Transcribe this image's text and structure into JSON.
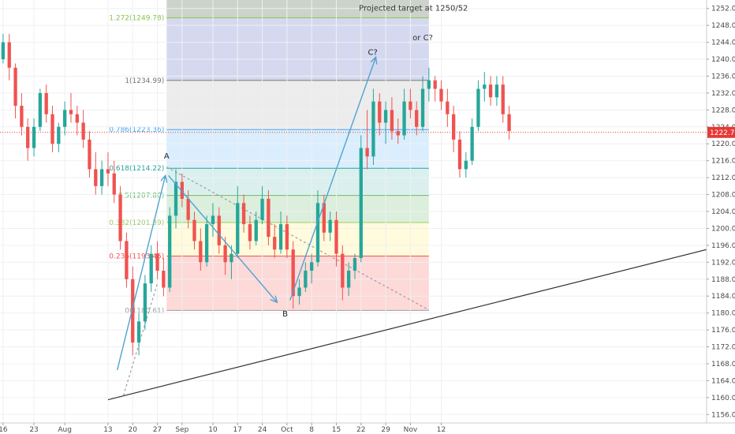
{
  "chart_data": {
    "type": "candlestick",
    "y_axis": {
      "ylim": [
        1154,
        1254
      ],
      "ticks": [
        1156,
        1160,
        1164,
        1168,
        1172,
        1176,
        1180,
        1184,
        1188,
        1192,
        1196,
        1200,
        1204,
        1208,
        1212,
        1216,
        1220,
        1224,
        1228,
        1232,
        1236,
        1240,
        1244,
        1248,
        1252
      ],
      "position": "right"
    },
    "x_axis": {
      "xlim": [
        -0.5,
        114
      ],
      "ticks": [
        {
          "i": 0,
          "label": "16"
        },
        {
          "i": 5,
          "label": "23"
        },
        {
          "i": 10,
          "label": "Aug"
        },
        {
          "i": 17,
          "label": "13"
        },
        {
          "i": 21,
          "label": "20"
        },
        {
          "i": 25,
          "label": "27"
        },
        {
          "i": 29,
          "label": "Sep"
        },
        {
          "i": 34,
          "label": "10"
        },
        {
          "i": 38,
          "label": "17"
        },
        {
          "i": 42,
          "label": "24"
        },
        {
          "i": 46,
          "label": "Oct"
        },
        {
          "i": 50,
          "label": "8"
        },
        {
          "i": 54,
          "label": "15"
        },
        {
          "i": 58,
          "label": "22"
        },
        {
          "i": 62,
          "label": "29"
        },
        {
          "i": 66,
          "label": "Nov"
        },
        {
          "i": 71,
          "label": "12"
        }
      ]
    },
    "last_price": {
      "value": 1222.7,
      "label": "1222.70",
      "color": "#e53935"
    },
    "fib_retracement": {
      "x_start": 26.5,
      "x_end": 69,
      "levels": [
        {
          "ratio": "0",
          "value": 1180.61,
          "label": "0(1180.61)",
          "line": "#9e9e9e",
          "fill": "rgba(244,67,54,0.20)"
        },
        {
          "ratio": "0.236",
          "value": 1193.45,
          "label": "0.236(1193.45)",
          "line": "#ef5350",
          "fill": "rgba(255,235,59,0.18)"
        },
        {
          "ratio": "0.382",
          "value": 1201.39,
          "label": "0.382(1201.39)",
          "line": "#9ccc65",
          "fill": "rgba(76,175,80,0.20)"
        },
        {
          "ratio": "0.5",
          "value": 1207.8,
          "label": "0.5(1207.80)",
          "line": "#66bb6a",
          "fill": "rgba(0,150,136,0.14)"
        },
        {
          "ratio": "0.618",
          "value": 1214.22,
          "label": "0.618(1214.22)",
          "line": "#26a69a",
          "fill": "rgba(33,150,243,0.16)"
        },
        {
          "ratio": "0.786",
          "value": 1223.36,
          "label": "0.786(1223.36)",
          "line": "#42a5f5",
          "fill": "rgba(158,158,158,0.20)"
        },
        {
          "ratio": "1",
          "value": 1234.99,
          "label": "1(1234.99)",
          "line": "#757575",
          "fill": "rgba(63,81,181,0.22)"
        },
        {
          "ratio": "1.272",
          "value": 1249.78,
          "label": "1.272(1249.78)",
          "line": "#8bc34a",
          "fill": "rgba(85,110,80,0.30)"
        }
      ]
    },
    "annotations": [
      {
        "text": "Projected target at 1250/52",
        "x": 66.5,
        "y": 1251.5
      },
      {
        "text": "or C?",
        "x": 68,
        "y": 1244.5
      }
    ],
    "wave_labels": [
      {
        "text": "A",
        "x": 26.5,
        "y": 1216.5
      },
      {
        "text": "B",
        "x": 45.7,
        "y": 1179.2
      },
      {
        "text": "C?",
        "x": 59.9,
        "y": 1241
      }
    ],
    "lines": [
      {
        "name": "support-trendline",
        "x1": 17,
        "y1": 1159.5,
        "x2": 114,
        "y2": 1195,
        "color": "#333333",
        "dash": ""
      },
      {
        "name": "dashed-trendline-lower",
        "x1": 19.5,
        "y1": 1160.5,
        "x2": 25,
        "y2": 1187,
        "color": "#9e9e9e",
        "dash": "3,3"
      },
      {
        "name": "dashed-trendline-upper",
        "x1": 26.5,
        "y1": 1214.5,
        "x2": 69,
        "y2": 1180.7,
        "color": "#9e9e9e",
        "dash": "3,3"
      }
    ],
    "arrows": [
      {
        "name": "arrow-wave-up-1",
        "x1": 18.5,
        "y1": 1166.5,
        "x2": 26.3,
        "y2": 1212.5
      },
      {
        "name": "arrow-wave-a-to-b",
        "x1": 26.8,
        "y1": 1212.5,
        "x2": 44.4,
        "y2": 1182.5
      },
      {
        "name": "arrow-wave-b-to-c",
        "x1": 46.5,
        "y1": 1183,
        "x2": 60.4,
        "y2": 1240.5
      }
    ],
    "candles": [
      [
        1240,
        1246,
        1239,
        1244
      ],
      [
        1244,
        1246,
        1235,
        1238
      ],
      [
        1238,
        1239,
        1226,
        1229
      ],
      [
        1229,
        1232,
        1222,
        1224
      ],
      [
        1224,
        1226,
        1216,
        1219
      ],
      [
        1219,
        1226,
        1217,
        1224
      ],
      [
        1224,
        1233,
        1223,
        1232
      ],
      [
        1232,
        1234,
        1225,
        1227
      ],
      [
        1227,
        1229,
        1218,
        1220
      ],
      [
        1220,
        1225,
        1218,
        1224
      ],
      [
        1224,
        1230,
        1222,
        1228
      ],
      [
        1228,
        1232,
        1225,
        1227
      ],
      [
        1227,
        1229,
        1222,
        1225
      ],
      [
        1225,
        1228,
        1219,
        1221
      ],
      [
        1221,
        1223,
        1212,
        1214
      ],
      [
        1214,
        1218,
        1208,
        1210
      ],
      [
        1210,
        1216,
        1208,
        1214
      ],
      [
        1214,
        1218,
        1210,
        1213
      ],
      [
        1213,
        1216,
        1206,
        1208
      ],
      [
        1208,
        1210,
        1195,
        1197
      ],
      [
        1197,
        1199,
        1186,
        1188
      ],
      [
        1188,
        1191,
        1170,
        1173
      ],
      [
        1173,
        1180,
        1170,
        1178
      ],
      [
        1178,
        1189,
        1176,
        1187
      ],
      [
        1187,
        1196,
        1185,
        1194
      ],
      [
        1194,
        1197,
        1188,
        1190
      ],
      [
        1190,
        1193,
        1184,
        1186
      ],
      [
        1186,
        1205,
        1185,
        1203
      ],
      [
        1203,
        1214,
        1200,
        1211
      ],
      [
        1211,
        1213,
        1205,
        1207
      ],
      [
        1207,
        1209,
        1200,
        1202
      ],
      [
        1202,
        1204,
        1195,
        1197
      ],
      [
        1197,
        1200,
        1190,
        1192
      ],
      [
        1192,
        1203,
        1191,
        1201
      ],
      [
        1201,
        1206,
        1198,
        1203
      ],
      [
        1203,
        1205,
        1194,
        1196
      ],
      [
        1196,
        1198,
        1189,
        1192
      ],
      [
        1192,
        1196,
        1188,
        1194
      ],
      [
        1194,
        1210,
        1193,
        1206
      ],
      [
        1206,
        1208,
        1199,
        1201
      ],
      [
        1201,
        1203,
        1195,
        1197
      ],
      [
        1197,
        1204,
        1196,
        1202
      ],
      [
        1202,
        1210,
        1201,
        1207
      ],
      [
        1207,
        1209,
        1196,
        1198
      ],
      [
        1198,
        1201,
        1193,
        1195
      ],
      [
        1195,
        1204,
        1194,
        1201
      ],
      [
        1201,
        1203,
        1193,
        1195
      ],
      [
        1195,
        1197,
        1181,
        1184
      ],
      [
        1184,
        1188,
        1182,
        1186
      ],
      [
        1186,
        1192,
        1185,
        1190
      ],
      [
        1190,
        1194,
        1187,
        1192
      ],
      [
        1192,
        1209,
        1191,
        1206
      ],
      [
        1206,
        1208,
        1197,
        1199
      ],
      [
        1199,
        1204,
        1197,
        1202
      ],
      [
        1202,
        1204,
        1191,
        1194
      ],
      [
        1194,
        1196,
        1183,
        1186
      ],
      [
        1186,
        1192,
        1184,
        1190
      ],
      [
        1190,
        1194,
        1188,
        1193
      ],
      [
        1193,
        1222,
        1192,
        1219
      ],
      [
        1219,
        1228,
        1214,
        1217
      ],
      [
        1217,
        1233,
        1215,
        1230
      ],
      [
        1230,
        1232,
        1222,
        1225
      ],
      [
        1225,
        1230,
        1220,
        1228
      ],
      [
        1228,
        1231,
        1221,
        1223
      ],
      [
        1223,
        1226,
        1220,
        1222
      ],
      [
        1222,
        1233,
        1221,
        1230
      ],
      [
        1230,
        1233,
        1226,
        1228
      ],
      [
        1228,
        1230,
        1222,
        1224
      ],
      [
        1224,
        1236,
        1223,
        1233
      ],
      [
        1233,
        1238,
        1230,
        1235
      ],
      [
        1235,
        1236,
        1230,
        1233
      ],
      [
        1233,
        1235,
        1228,
        1230
      ],
      [
        1230,
        1233,
        1224,
        1227
      ],
      [
        1227,
        1229,
        1218,
        1221
      ],
      [
        1221,
        1223,
        1212,
        1214
      ],
      [
        1214,
        1218,
        1212,
        1216
      ],
      [
        1216,
        1226,
        1215,
        1224
      ],
      [
        1224,
        1235,
        1223,
        1233
      ],
      [
        1233,
        1237,
        1230,
        1234
      ],
      [
        1234,
        1236,
        1229,
        1231
      ],
      [
        1231,
        1236,
        1229,
        1234
      ],
      [
        1234,
        1236,
        1225,
        1227
      ],
      [
        1227,
        1229,
        1221,
        1223
      ]
    ],
    "up_color": "#26a69a",
    "down_color": "#ef5350"
  }
}
